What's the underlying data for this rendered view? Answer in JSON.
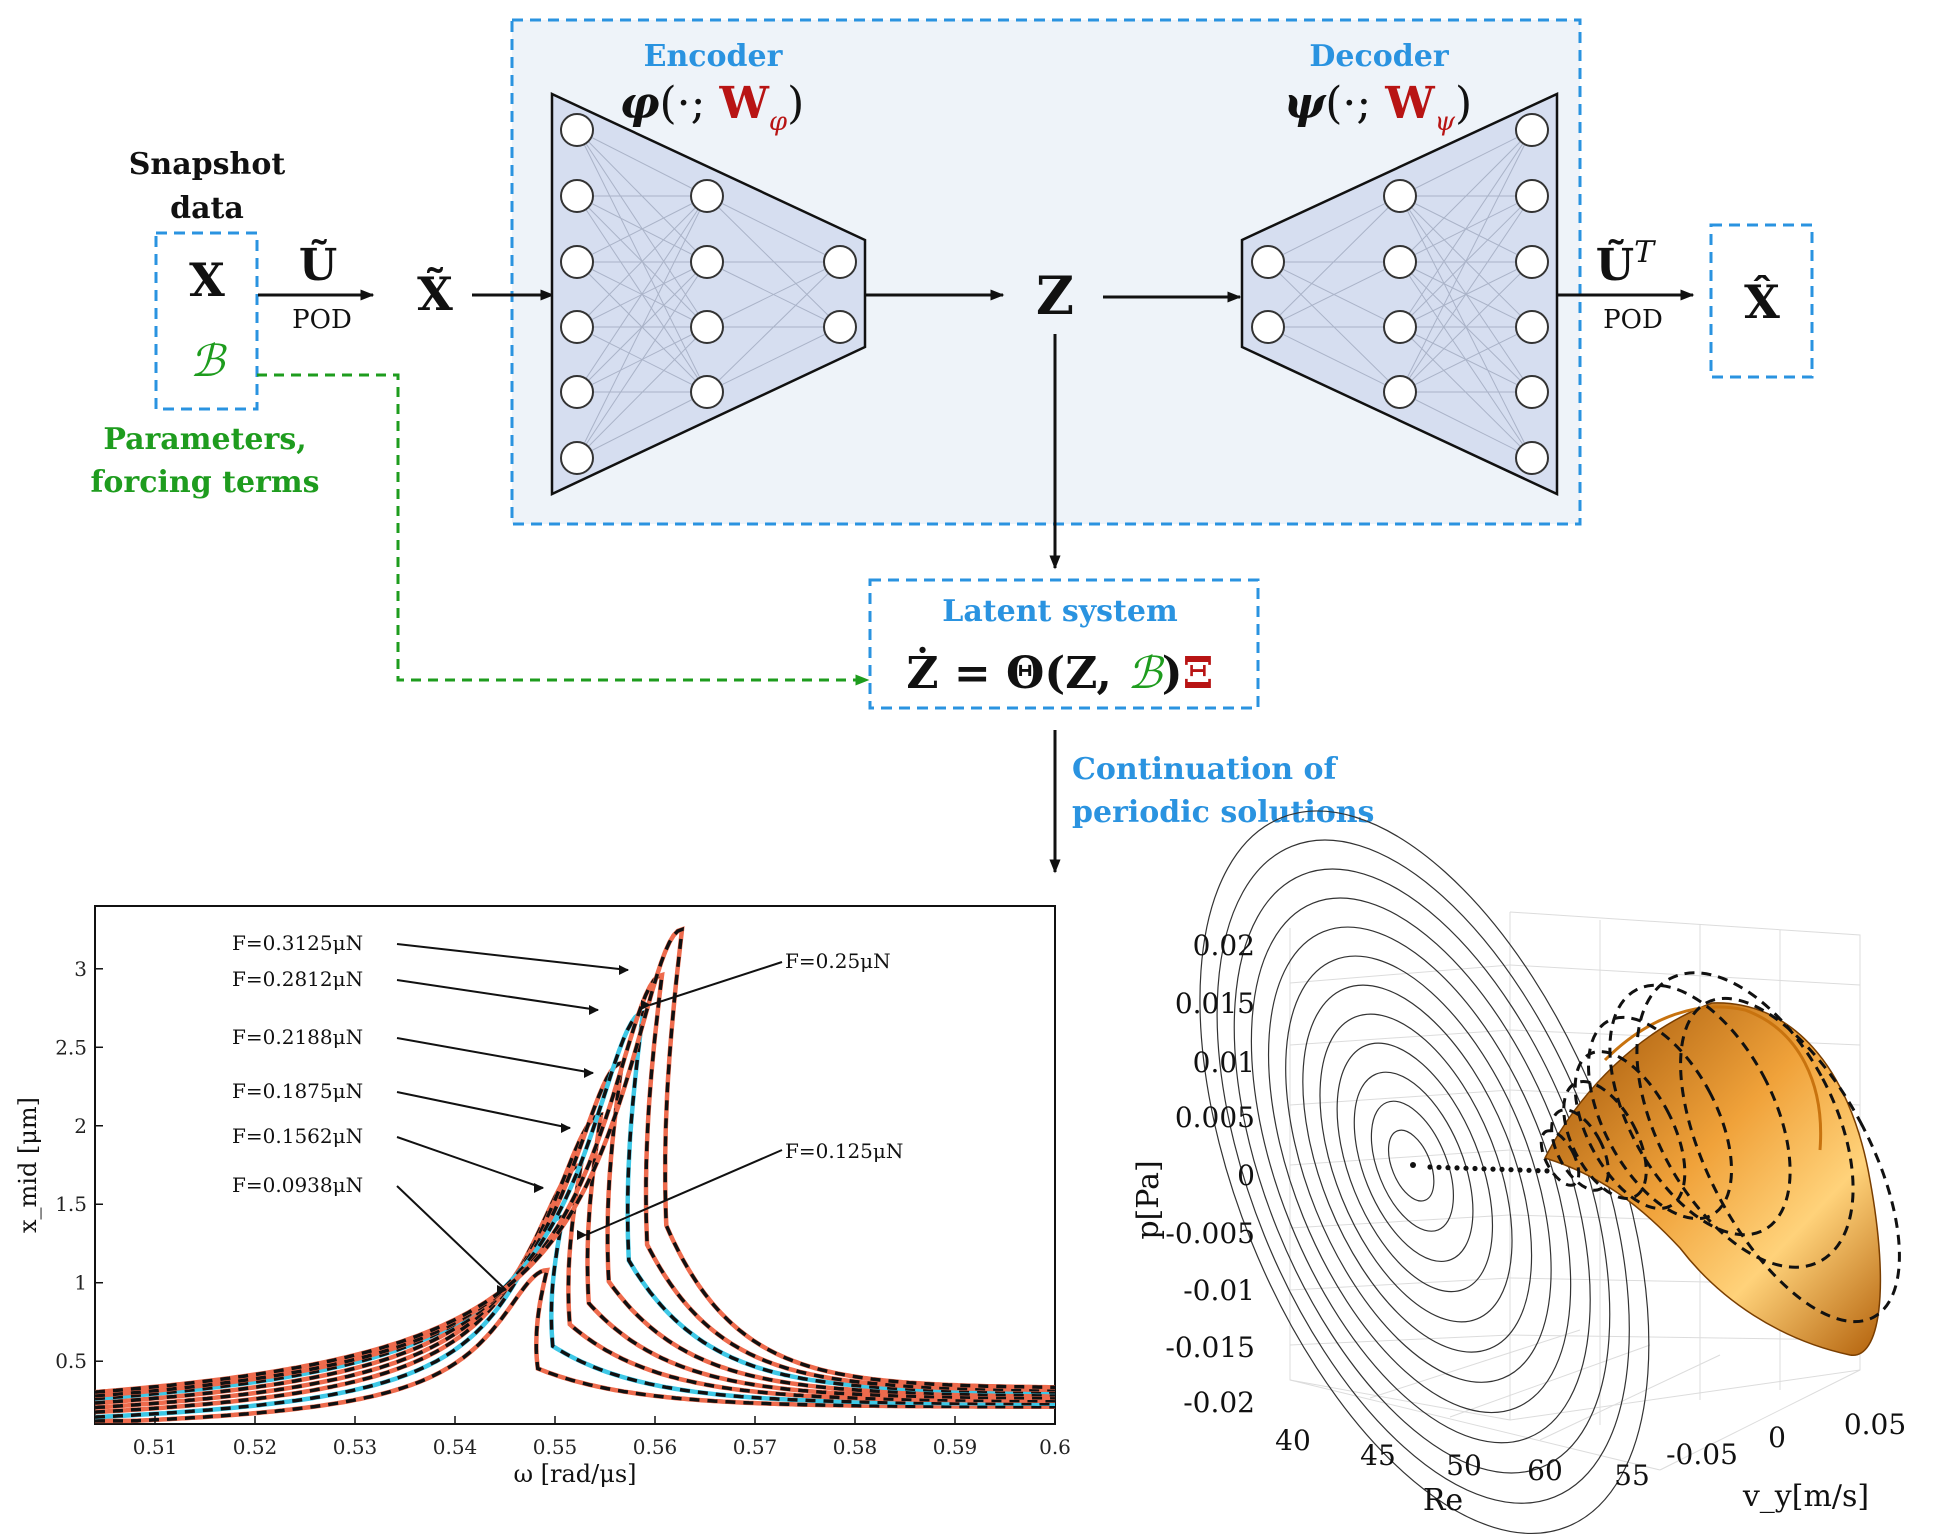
{
  "diagram": {
    "snapshot_label": [
      "Snapshot",
      "data"
    ],
    "x_symbol": "X",
    "b_symbol": "ℬ",
    "params_label": [
      "Parameters,",
      "forcing terms"
    ],
    "u_tilde": "Ũ",
    "pod_label": "POD",
    "x_tilde": "X̃",
    "encoder_label": "Encoder",
    "encoder_fn": {
      "fn": "φ",
      "open": "(·; ",
      "w": "W",
      "sub": "φ",
      "close": ")"
    },
    "decoder_label": "Decoder",
    "decoder_fn": {
      "fn": "ψ",
      "open": "(·; ",
      "w": "W",
      "sub": "ψ",
      "close": ")"
    },
    "z_symbol": "Z",
    "u_tilde_t": "Ũ",
    "u_tilde_t_sup": "T",
    "pod_label_right": "POD",
    "x_hat": "X̂",
    "latent_label": "Latent system",
    "latent_eq": {
      "lhs": "Ż = Θ(Z, ",
      "b": "ℬ",
      "mid": ")",
      "xi": "Ξ"
    },
    "continuation_label": [
      "Continuation of",
      "periodic solutions"
    ],
    "colors": {
      "blue": "#2a93e0",
      "green": "#1e9c1e",
      "red": "#b81414",
      "box_fill": "#eef3f9",
      "trap_fill": "#d6def0"
    }
  },
  "chart_data": [
    {
      "type": "line",
      "xlabel": "ω [rad/μs]",
      "ylabel": "x_mid [μm]",
      "xlim": [
        0.504,
        0.6
      ],
      "ylim": [
        0.1,
        3.4
      ],
      "xticks": [
        "0.51",
        "0.52",
        "0.53",
        "0.54",
        "0.55",
        "0.56",
        "0.57",
        "0.58",
        "0.59",
        "0.6"
      ],
      "yticks": [
        "0.5",
        "1",
        "1.5",
        "2",
        "2.5",
        "3"
      ],
      "reference_style": "black dashed",
      "series": [
        {
          "name": "F=0.0938μN",
          "peak_x": 0.5492,
          "peak_y": 1.08,
          "color": "#ee6b4d"
        },
        {
          "name": "F=0.125μN",
          "peak_x": 0.5508,
          "peak_y": 1.42,
          "color": "#3ec8e6"
        },
        {
          "name": "F=0.1562μN",
          "peak_x": 0.5526,
          "peak_y": 1.75,
          "color": "#ee6b4d"
        },
        {
          "name": "F=0.1875μN",
          "peak_x": 0.5546,
          "peak_y": 2.07,
          "color": "#ee6b4d"
        },
        {
          "name": "F=0.2188μN",
          "peak_x": 0.5567,
          "peak_y": 2.4,
          "color": "#ee6b4d"
        },
        {
          "name": "F=0.25μN",
          "peak_x": 0.5588,
          "peak_y": 2.72,
          "color": "#3ec8e6"
        },
        {
          "name": "F=0.2812μN",
          "peak_x": 0.5607,
          "peak_y": 2.96,
          "color": "#ee6b4d"
        },
        {
          "name": "F=0.3125μN",
          "peak_x": 0.5627,
          "peak_y": 3.25,
          "color": "#ee6b4d"
        }
      ]
    },
    {
      "type": "other",
      "zlabel": "p[Pa]",
      "xlabel": "Re",
      "ylabel": "v_y[m/s]",
      "zticks": [
        "0.02",
        "0.015",
        "0.01",
        "0.005",
        "0",
        "-0.005",
        "-0.01",
        "-0.015",
        "-0.02"
      ],
      "re_ticks": [
        "40",
        "45",
        "50",
        "60",
        "55"
      ],
      "vy_ticks": [
        "-0.05",
        "0",
        "0.05"
      ],
      "surface_color": "#e58a12"
    }
  ]
}
